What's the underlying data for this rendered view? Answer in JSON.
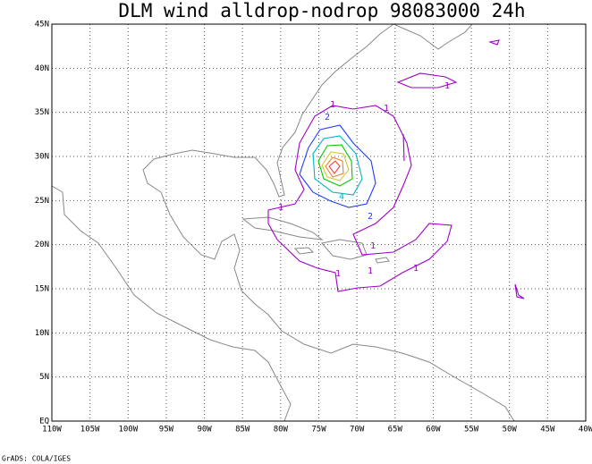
{
  "map": {
    "title": "DLM wind alldrop-nodrop 98083000 24h",
    "footer": "GrADS: COLA/IGES",
    "xlim": [
      -110,
      -40
    ],
    "ylim": [
      0,
      45
    ],
    "xticks": [
      {
        "value": -110,
        "label": "110W"
      },
      {
        "value": -105,
        "label": "105W"
      },
      {
        "value": -100,
        "label": "100W"
      },
      {
        "value": -95,
        "label": "95W"
      },
      {
        "value": -90,
        "label": "90W"
      },
      {
        "value": -85,
        "label": "85W"
      },
      {
        "value": -80,
        "label": "80W"
      },
      {
        "value": -75,
        "label": "75W"
      },
      {
        "value": -70,
        "label": "70W"
      },
      {
        "value": -65,
        "label": "65W"
      },
      {
        "value": -60,
        "label": "60W"
      },
      {
        "value": -55,
        "label": "55W"
      },
      {
        "value": -50,
        "label": "50W"
      },
      {
        "value": -45,
        "label": "45W"
      },
      {
        "value": -40,
        "label": "40W"
      }
    ],
    "yticks": [
      {
        "value": 0,
        "label": "EQ"
      },
      {
        "value": 5,
        "label": "5N"
      },
      {
        "value": 10,
        "label": "10N"
      },
      {
        "value": 15,
        "label": "15N"
      },
      {
        "value": 20,
        "label": "20N"
      },
      {
        "value": 25,
        "label": "25N"
      },
      {
        "value": 30,
        "label": "30N"
      },
      {
        "value": 35,
        "label": "35N"
      },
      {
        "value": 40,
        "label": "40N"
      },
      {
        "value": 45,
        "label": "45N"
      }
    ],
    "contour_labels": [
      1,
      1,
      2,
      1,
      1,
      2,
      4,
      1,
      1,
      1,
      1
    ]
  }
}
